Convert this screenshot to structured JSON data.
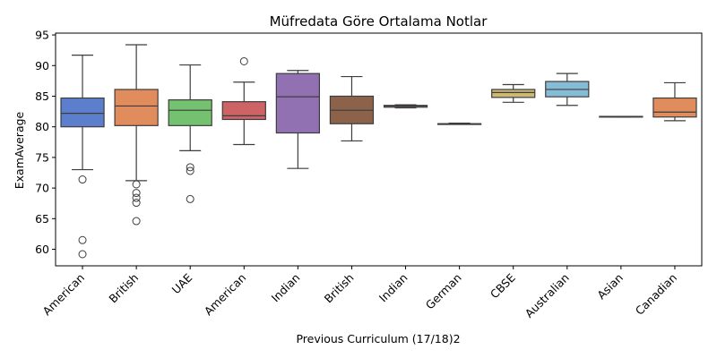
{
  "chart_data": {
    "type": "box",
    "title": "Müfredata Göre Ortalama Notlar",
    "xlabel": "Previous Curriculum (17/18)2",
    "ylabel": "ExamAverage",
    "ylim": [
      57.3,
      95.3
    ],
    "yticks": [
      60,
      65,
      70,
      75,
      80,
      85,
      90,
      95
    ],
    "grid": false,
    "legend": "none",
    "categories": [
      "American",
      "British",
      "UAE",
      "American",
      "Indian",
      "British",
      "Indian",
      "German",
      "CBSE",
      "Australian",
      "Asian",
      "Canadian"
    ],
    "boxes": [
      {
        "whisker_low": 73.0,
        "q1": 80.0,
        "median": 82.2,
        "q3": 84.7,
        "whisker_high": 91.7,
        "outliers": [
          71.4,
          61.5,
          59.2
        ],
        "color": "#5b7fcc"
      },
      {
        "whisker_low": 71.2,
        "q1": 80.2,
        "median": 83.4,
        "q3": 86.1,
        "whisker_high": 93.4,
        "outliers": [
          70.6,
          69.2,
          68.4,
          67.6,
          64.6
        ],
        "color": "#e08c5c"
      },
      {
        "whisker_low": 76.1,
        "q1": 80.2,
        "median": 82.7,
        "q3": 84.4,
        "whisker_high": 90.1,
        "outliers": [
          73.4,
          72.8,
          68.2
        ],
        "color": "#74c170"
      },
      {
        "whisker_low": 77.1,
        "q1": 81.2,
        "median": 81.8,
        "q3": 84.1,
        "whisker_high": 87.3,
        "outliers": [
          90.7
        ],
        "color": "#cd6365"
      },
      {
        "whisker_low": 73.2,
        "q1": 79.0,
        "median": 84.9,
        "q3": 88.7,
        "whisker_high": 89.2,
        "outliers": [],
        "color": "#9171b1"
      },
      {
        "whisker_low": 77.7,
        "q1": 80.5,
        "median": 82.7,
        "q3": 85.0,
        "whisker_high": 88.2,
        "outliers": [],
        "color": "#8c634a"
      },
      {
        "whisker_low": 83.1,
        "q1": 83.2,
        "median": 83.4,
        "q3": 83.5,
        "whisker_high": 83.6,
        "outliers": [],
        "color": "#d889c6"
      },
      {
        "whisker_low": 80.4,
        "q1": 80.4,
        "median": 80.5,
        "q3": 80.5,
        "whisker_high": 80.6,
        "outliers": [],
        "color": "#8c8c8c"
      },
      {
        "whisker_low": 84.0,
        "q1": 84.8,
        "median": 85.6,
        "q3": 86.1,
        "whisker_high": 86.9,
        "outliers": [],
        "color": "#ccb974"
      },
      {
        "whisker_low": 83.5,
        "q1": 84.9,
        "median": 86.1,
        "q3": 87.4,
        "whisker_high": 88.7,
        "outliers": [],
        "color": "#86bcd6"
      },
      {
        "whisker_low": 81.6,
        "q1": 81.6,
        "median": 81.7,
        "q3": 81.7,
        "whisker_high": 81.7,
        "outliers": [],
        "color": "#5b7fcc"
      },
      {
        "whisker_low": 81.0,
        "q1": 81.6,
        "median": 82.4,
        "q3": 84.7,
        "whisker_high": 87.2,
        "outliers": [],
        "color": "#e08c5c"
      }
    ]
  }
}
